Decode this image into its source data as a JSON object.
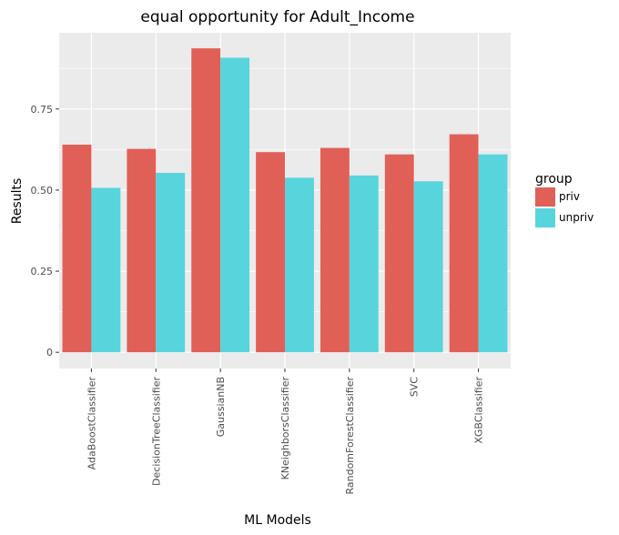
{
  "chart_data": {
    "type": "bar",
    "title": "equal opportunity for Adult_Income",
    "xlabel": "ML Models",
    "ylabel": "Results",
    "categories": [
      "AdaBoostClassifier",
      "DecisionTreeClassifier",
      "GaussianNB",
      "KNeighborsClassifier",
      "RandomForestClassifier",
      "SVC",
      "XGBClassifier"
    ],
    "series": [
      {
        "name": "priv",
        "color": "#e06058",
        "values": [
          0.64,
          0.627,
          0.937,
          0.617,
          0.63,
          0.61,
          0.672
        ]
      },
      {
        "name": "unpriv",
        "color": "#58d4dc",
        "values": [
          0.507,
          0.553,
          0.908,
          0.538,
          0.545,
          0.527,
          0.61
        ]
      }
    ],
    "ylim": [
      -0.05,
      0.985
    ],
    "yticks": [
      0,
      0.25,
      0.5,
      0.75
    ],
    "ytick_labels": [
      "0",
      "0.25",
      "0.50",
      "0.75"
    ],
    "legend": {
      "title": "group",
      "position": "right"
    },
    "grid": true,
    "panel_background": "#ebebeb",
    "grid_color": "#ffffff"
  }
}
